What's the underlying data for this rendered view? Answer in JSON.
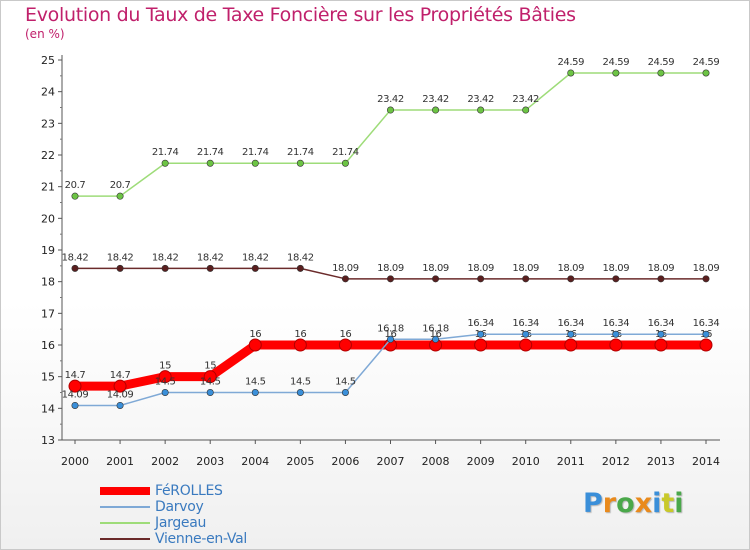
{
  "header": {
    "title": "Evolution du Taux de Taxe Foncière sur les Propriétés Bâties",
    "subtitle": "(en %)"
  },
  "logo": {
    "text": "Proxiti",
    "letters": [
      {
        "ch": "P",
        "color": "#3a8fd9"
      },
      {
        "ch": "r",
        "color": "#e98a1c"
      },
      {
        "ch": "o",
        "color": "#4aa84a"
      },
      {
        "ch": "x",
        "color": "#e98a1c"
      },
      {
        "ch": "i",
        "color": "#3a8fd9"
      },
      {
        "ch": "t",
        "color": "#c9c92a"
      },
      {
        "ch": "i",
        "color": "#4aa84a"
      }
    ]
  },
  "chart_data": {
    "type": "line",
    "title": "Evolution du Taux de Taxe Foncière sur les Propriétés Bâties",
    "ylabel": "(en %)",
    "xlabel": "",
    "x": [
      "2000",
      "2001",
      "2002",
      "2003",
      "2004",
      "2005",
      "2006",
      "2007",
      "2008",
      "2009",
      "2010",
      "2011",
      "2012",
      "2013",
      "2014"
    ],
    "ylim": [
      13,
      25
    ],
    "yticks": [
      13,
      14,
      15,
      16,
      17,
      18,
      19,
      20,
      21,
      22,
      23,
      24,
      25
    ],
    "grid": false,
    "legend_position": "bottom-left",
    "series": [
      {
        "name": "FéROLLES",
        "color": "#ff0000",
        "emphasis": true,
        "values": [
          14.7,
          14.7,
          15,
          15,
          16,
          16,
          16,
          16,
          16,
          16,
          16,
          16,
          16,
          16,
          16
        ],
        "labels": [
          "14.7",
          "14.7",
          "15",
          "15",
          "16",
          "16",
          "16",
          "16",
          "16",
          "16",
          "16",
          "16",
          "16",
          "16",
          "16"
        ]
      },
      {
        "name": "Darvoy",
        "color": "#7fa9d6",
        "marker": "#3a8fd9",
        "values": [
          14.09,
          14.09,
          14.5,
          14.5,
          14.5,
          14.5,
          14.5,
          16.18,
          16.18,
          16.34,
          16.34,
          16.34,
          16.34,
          16.34,
          16.34
        ],
        "labels": [
          "14.09",
          "14.09",
          "14.5",
          "14.5",
          "14.5",
          "14.5",
          "14.5",
          "16.18",
          "16.18",
          "16.34",
          "16.34",
          "16.34",
          "16.34",
          "16.34",
          "16.34"
        ]
      },
      {
        "name": "Jargeau",
        "color": "#9edc79",
        "marker": "#6cc444",
        "values": [
          20.7,
          20.7,
          21.74,
          21.74,
          21.74,
          21.74,
          21.74,
          23.42,
          23.42,
          23.42,
          23.42,
          24.59,
          24.59,
          24.59,
          24.59
        ],
        "labels": [
          "20.7",
          "20.7",
          "21.74",
          "21.74",
          "21.74",
          "21.74",
          "21.74",
          "23.42",
          "23.42",
          "23.42",
          "23.42",
          "24.59",
          "24.59",
          "24.59",
          "24.59"
        ]
      },
      {
        "name": "Vienne-en-Val",
        "color": "#6b2b2b",
        "marker": "#5a1f1f",
        "values": [
          18.42,
          18.42,
          18.42,
          18.42,
          18.42,
          18.42,
          18.09,
          18.09,
          18.09,
          18.09,
          18.09,
          18.09,
          18.09,
          18.09,
          18.09
        ],
        "labels": [
          "18.42",
          "18.42",
          "18.42",
          "18.42",
          "18.42",
          "18.42",
          "18.09",
          "18.09",
          "18.09",
          "18.09",
          "18.09",
          "18.09",
          "18.09",
          "18.09",
          "18.09"
        ]
      }
    ]
  }
}
